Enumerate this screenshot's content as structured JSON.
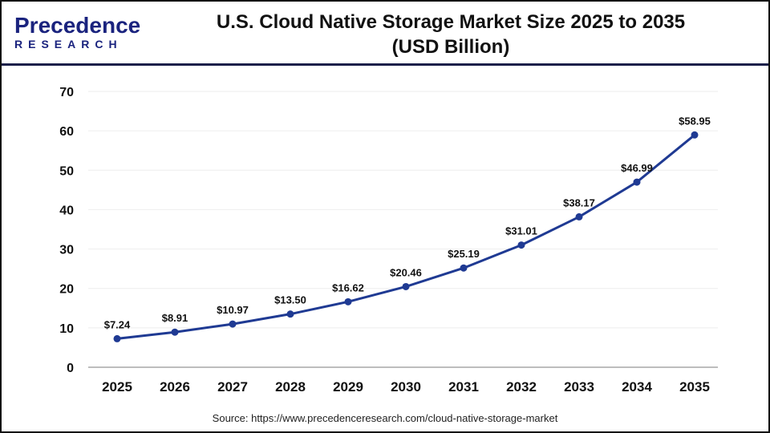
{
  "header": {
    "logo_text": "Precedence",
    "logo_sub": "RESEARCH",
    "title_line1": "U.S. Cloud Native Storage Market Size 2025 to 2035",
    "title_line2": "(USD Billion)"
  },
  "source": "Source: https://www.precedenceresearch.com/cloud-native-storage-market",
  "chart_data": {
    "type": "line",
    "title": "U.S. Cloud Native Storage Market Size 2025 to 2035 (USD Billion)",
    "xlabel": "",
    "ylabel": "",
    "categories": [
      "2025",
      "2026",
      "2027",
      "2028",
      "2029",
      "2030",
      "2031",
      "2032",
      "2033",
      "2034",
      "2035"
    ],
    "values": [
      7.24,
      8.91,
      10.97,
      13.5,
      16.62,
      20.46,
      25.19,
      31.01,
      38.17,
      46.99,
      58.95
    ],
    "data_labels": [
      "$7.24",
      "$8.91",
      "$10.97",
      "$13.50",
      "$16.62",
      "$20.46",
      "$25.19",
      "$31.01",
      "$38.17",
      "$46.99",
      "$58.95"
    ],
    "ylim": [
      0,
      70
    ],
    "yticks": [
      0,
      10,
      20,
      30,
      40,
      50,
      60,
      70
    ],
    "grid": true,
    "line_color": "#1f3a93"
  }
}
